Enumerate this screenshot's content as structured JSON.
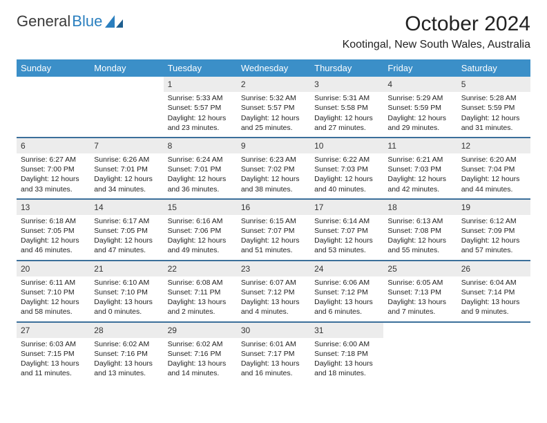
{
  "logo": {
    "text1": "General",
    "text2": "Blue"
  },
  "title": "October 2024",
  "location": "Kootingal, New South Wales, Australia",
  "colors": {
    "header_bg": "#3b8fc8",
    "header_fg": "#ffffff",
    "num_bg": "#ececec",
    "week_border": "#3b6f9a",
    "logo_blue": "#2a7fbf",
    "text": "#222222",
    "background": "#ffffff"
  },
  "typography": {
    "title_fontsize": 30,
    "location_fontsize": 16,
    "dayheader_fontsize": 13,
    "cell_fontsize": 10.5,
    "daynum_fontsize": 12
  },
  "day_names": [
    "Sunday",
    "Monday",
    "Tuesday",
    "Wednesday",
    "Thursday",
    "Friday",
    "Saturday"
  ],
  "weeks": [
    [
      {
        "n": "",
        "sr": "",
        "ss": "",
        "dl": ""
      },
      {
        "n": "",
        "sr": "",
        "ss": "",
        "dl": ""
      },
      {
        "n": "1",
        "sr": "Sunrise: 5:33 AM",
        "ss": "Sunset: 5:57 PM",
        "dl": "Daylight: 12 hours and 23 minutes."
      },
      {
        "n": "2",
        "sr": "Sunrise: 5:32 AM",
        "ss": "Sunset: 5:57 PM",
        "dl": "Daylight: 12 hours and 25 minutes."
      },
      {
        "n": "3",
        "sr": "Sunrise: 5:31 AM",
        "ss": "Sunset: 5:58 PM",
        "dl": "Daylight: 12 hours and 27 minutes."
      },
      {
        "n": "4",
        "sr": "Sunrise: 5:29 AM",
        "ss": "Sunset: 5:59 PM",
        "dl": "Daylight: 12 hours and 29 minutes."
      },
      {
        "n": "5",
        "sr": "Sunrise: 5:28 AM",
        "ss": "Sunset: 5:59 PM",
        "dl": "Daylight: 12 hours and 31 minutes."
      }
    ],
    [
      {
        "n": "6",
        "sr": "Sunrise: 6:27 AM",
        "ss": "Sunset: 7:00 PM",
        "dl": "Daylight: 12 hours and 33 minutes."
      },
      {
        "n": "7",
        "sr": "Sunrise: 6:26 AM",
        "ss": "Sunset: 7:01 PM",
        "dl": "Daylight: 12 hours and 34 minutes."
      },
      {
        "n": "8",
        "sr": "Sunrise: 6:24 AM",
        "ss": "Sunset: 7:01 PM",
        "dl": "Daylight: 12 hours and 36 minutes."
      },
      {
        "n": "9",
        "sr": "Sunrise: 6:23 AM",
        "ss": "Sunset: 7:02 PM",
        "dl": "Daylight: 12 hours and 38 minutes."
      },
      {
        "n": "10",
        "sr": "Sunrise: 6:22 AM",
        "ss": "Sunset: 7:03 PM",
        "dl": "Daylight: 12 hours and 40 minutes."
      },
      {
        "n": "11",
        "sr": "Sunrise: 6:21 AM",
        "ss": "Sunset: 7:03 PM",
        "dl": "Daylight: 12 hours and 42 minutes."
      },
      {
        "n": "12",
        "sr": "Sunrise: 6:20 AM",
        "ss": "Sunset: 7:04 PM",
        "dl": "Daylight: 12 hours and 44 minutes."
      }
    ],
    [
      {
        "n": "13",
        "sr": "Sunrise: 6:18 AM",
        "ss": "Sunset: 7:05 PM",
        "dl": "Daylight: 12 hours and 46 minutes."
      },
      {
        "n": "14",
        "sr": "Sunrise: 6:17 AM",
        "ss": "Sunset: 7:05 PM",
        "dl": "Daylight: 12 hours and 47 minutes."
      },
      {
        "n": "15",
        "sr": "Sunrise: 6:16 AM",
        "ss": "Sunset: 7:06 PM",
        "dl": "Daylight: 12 hours and 49 minutes."
      },
      {
        "n": "16",
        "sr": "Sunrise: 6:15 AM",
        "ss": "Sunset: 7:07 PM",
        "dl": "Daylight: 12 hours and 51 minutes."
      },
      {
        "n": "17",
        "sr": "Sunrise: 6:14 AM",
        "ss": "Sunset: 7:07 PM",
        "dl": "Daylight: 12 hours and 53 minutes."
      },
      {
        "n": "18",
        "sr": "Sunrise: 6:13 AM",
        "ss": "Sunset: 7:08 PM",
        "dl": "Daylight: 12 hours and 55 minutes."
      },
      {
        "n": "19",
        "sr": "Sunrise: 6:12 AM",
        "ss": "Sunset: 7:09 PM",
        "dl": "Daylight: 12 hours and 57 minutes."
      }
    ],
    [
      {
        "n": "20",
        "sr": "Sunrise: 6:11 AM",
        "ss": "Sunset: 7:10 PM",
        "dl": "Daylight: 12 hours and 58 minutes."
      },
      {
        "n": "21",
        "sr": "Sunrise: 6:10 AM",
        "ss": "Sunset: 7:10 PM",
        "dl": "Daylight: 13 hours and 0 minutes."
      },
      {
        "n": "22",
        "sr": "Sunrise: 6:08 AM",
        "ss": "Sunset: 7:11 PM",
        "dl": "Daylight: 13 hours and 2 minutes."
      },
      {
        "n": "23",
        "sr": "Sunrise: 6:07 AM",
        "ss": "Sunset: 7:12 PM",
        "dl": "Daylight: 13 hours and 4 minutes."
      },
      {
        "n": "24",
        "sr": "Sunrise: 6:06 AM",
        "ss": "Sunset: 7:12 PM",
        "dl": "Daylight: 13 hours and 6 minutes."
      },
      {
        "n": "25",
        "sr": "Sunrise: 6:05 AM",
        "ss": "Sunset: 7:13 PM",
        "dl": "Daylight: 13 hours and 7 minutes."
      },
      {
        "n": "26",
        "sr": "Sunrise: 6:04 AM",
        "ss": "Sunset: 7:14 PM",
        "dl": "Daylight: 13 hours and 9 minutes."
      }
    ],
    [
      {
        "n": "27",
        "sr": "Sunrise: 6:03 AM",
        "ss": "Sunset: 7:15 PM",
        "dl": "Daylight: 13 hours and 11 minutes."
      },
      {
        "n": "28",
        "sr": "Sunrise: 6:02 AM",
        "ss": "Sunset: 7:16 PM",
        "dl": "Daylight: 13 hours and 13 minutes."
      },
      {
        "n": "29",
        "sr": "Sunrise: 6:02 AM",
        "ss": "Sunset: 7:16 PM",
        "dl": "Daylight: 13 hours and 14 minutes."
      },
      {
        "n": "30",
        "sr": "Sunrise: 6:01 AM",
        "ss": "Sunset: 7:17 PM",
        "dl": "Daylight: 13 hours and 16 minutes."
      },
      {
        "n": "31",
        "sr": "Sunrise: 6:00 AM",
        "ss": "Sunset: 7:18 PM",
        "dl": "Daylight: 13 hours and 18 minutes."
      },
      {
        "n": "",
        "sr": "",
        "ss": "",
        "dl": ""
      },
      {
        "n": "",
        "sr": "",
        "ss": "",
        "dl": ""
      }
    ]
  ]
}
